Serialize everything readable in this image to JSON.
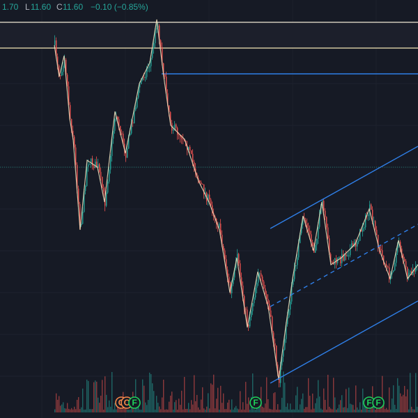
{
  "header": {
    "high_partial": "1.70",
    "low_label": "L",
    "low": "11.60",
    "close_label": "C",
    "close": "11.60",
    "change": "−0.10 (−0.85%)"
  },
  "events": [
    {
      "label": "C",
      "kind": "orange"
    },
    {
      "label": "C",
      "kind": "orange"
    },
    {
      "label": "F",
      "kind": "green"
    },
    {
      "label": "F",
      "kind": "green"
    },
    {
      "label": "F",
      "kind": "green"
    },
    {
      "label": "F",
      "kind": "green"
    }
  ]
}
